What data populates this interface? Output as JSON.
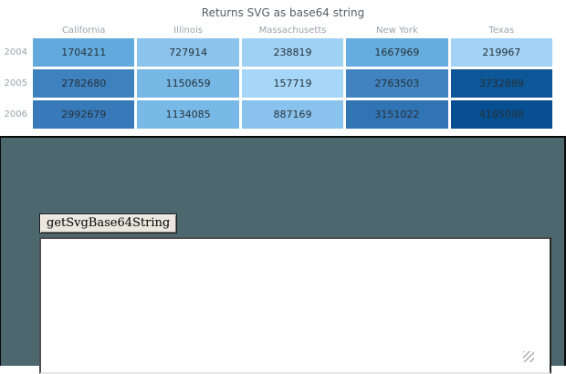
{
  "chart_data": {
    "type": "heatmap",
    "title": "Returns SVG as base64 string",
    "x_categories": [
      "California",
      "Illinois",
      "Massachusetts",
      "New York",
      "Texas"
    ],
    "y_categories": [
      "2004",
      "2005",
      "2006"
    ],
    "values": [
      [
        1704211,
        727914,
        238819,
        1667969,
        219967
      ],
      [
        2782680,
        1150659,
        157719,
        2763503,
        3732889
      ],
      [
        2992679,
        1134085,
        887169,
        3151022,
        4185098
      ]
    ],
    "cell_colors": [
      [
        "#62aade",
        "#8cc4ee",
        "#9fd1f5",
        "#65acdf",
        "#a2d3f6"
      ],
      [
        "#3e81bf",
        "#77b7e6",
        "#a6d6f8",
        "#4083c0",
        "#0d5697"
      ],
      [
        "#3779b9",
        "#79b9e7",
        "#89c2ed",
        "#3174b4",
        "#084f92"
      ]
    ],
    "color_scale": {
      "min_value": 157719,
      "max_value": 4185098,
      "min_color": "#a6d6f8",
      "max_color": "#084f92"
    },
    "legend": "off",
    "title_color": "#545f69",
    "axis_label_color": "#9aa3ab",
    "cell_label_color": "#263238"
  },
  "panel": {
    "background_color": "#4d676e",
    "button_label": "getSvgBase64String",
    "textarea_value": ""
  }
}
